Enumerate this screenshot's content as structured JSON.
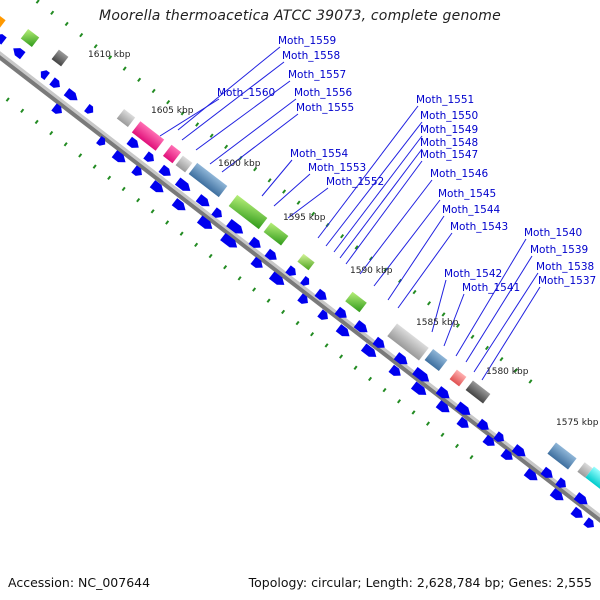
{
  "title": "Moorella thermoacetica ATCC 39073, complete genome",
  "footer": {
    "accession": "Accession: NC_007644",
    "topology": "Topology: circular; Length: 2,628,784 bp; Genes: 2,555"
  },
  "colors": {
    "backbone": "#8c8c8c",
    "cds_arrow": "#0000ee",
    "tick": "#228b22",
    "label_line": "#2020e0",
    "label_text": "#0000cc"
  },
  "scale_labels": [
    "1610 kbp",
    "1605 kbp",
    "1600 kbp",
    "1595 kbp",
    "1590 kbp",
    "1585 kbp",
    "1580 kbp",
    "1575 kbp"
  ],
  "gene_labels": [
    "Moth_1559",
    "Moth_1558",
    "Moth_1557",
    "Moth_1560",
    "Moth_1556",
    "Moth_1555",
    "Moth_1554",
    "Moth_1553",
    "Moth_1552",
    "Moth_1551",
    "Moth_1550",
    "Moth_1549",
    "Moth_1548",
    "Moth_1547",
    "Moth_1546",
    "Moth_1545",
    "Moth_1544",
    "Moth_1543",
    "Moth_1542",
    "Moth_1541",
    "Moth_1540",
    "Moth_1539",
    "Moth_1538",
    "Moth_1537"
  ]
}
